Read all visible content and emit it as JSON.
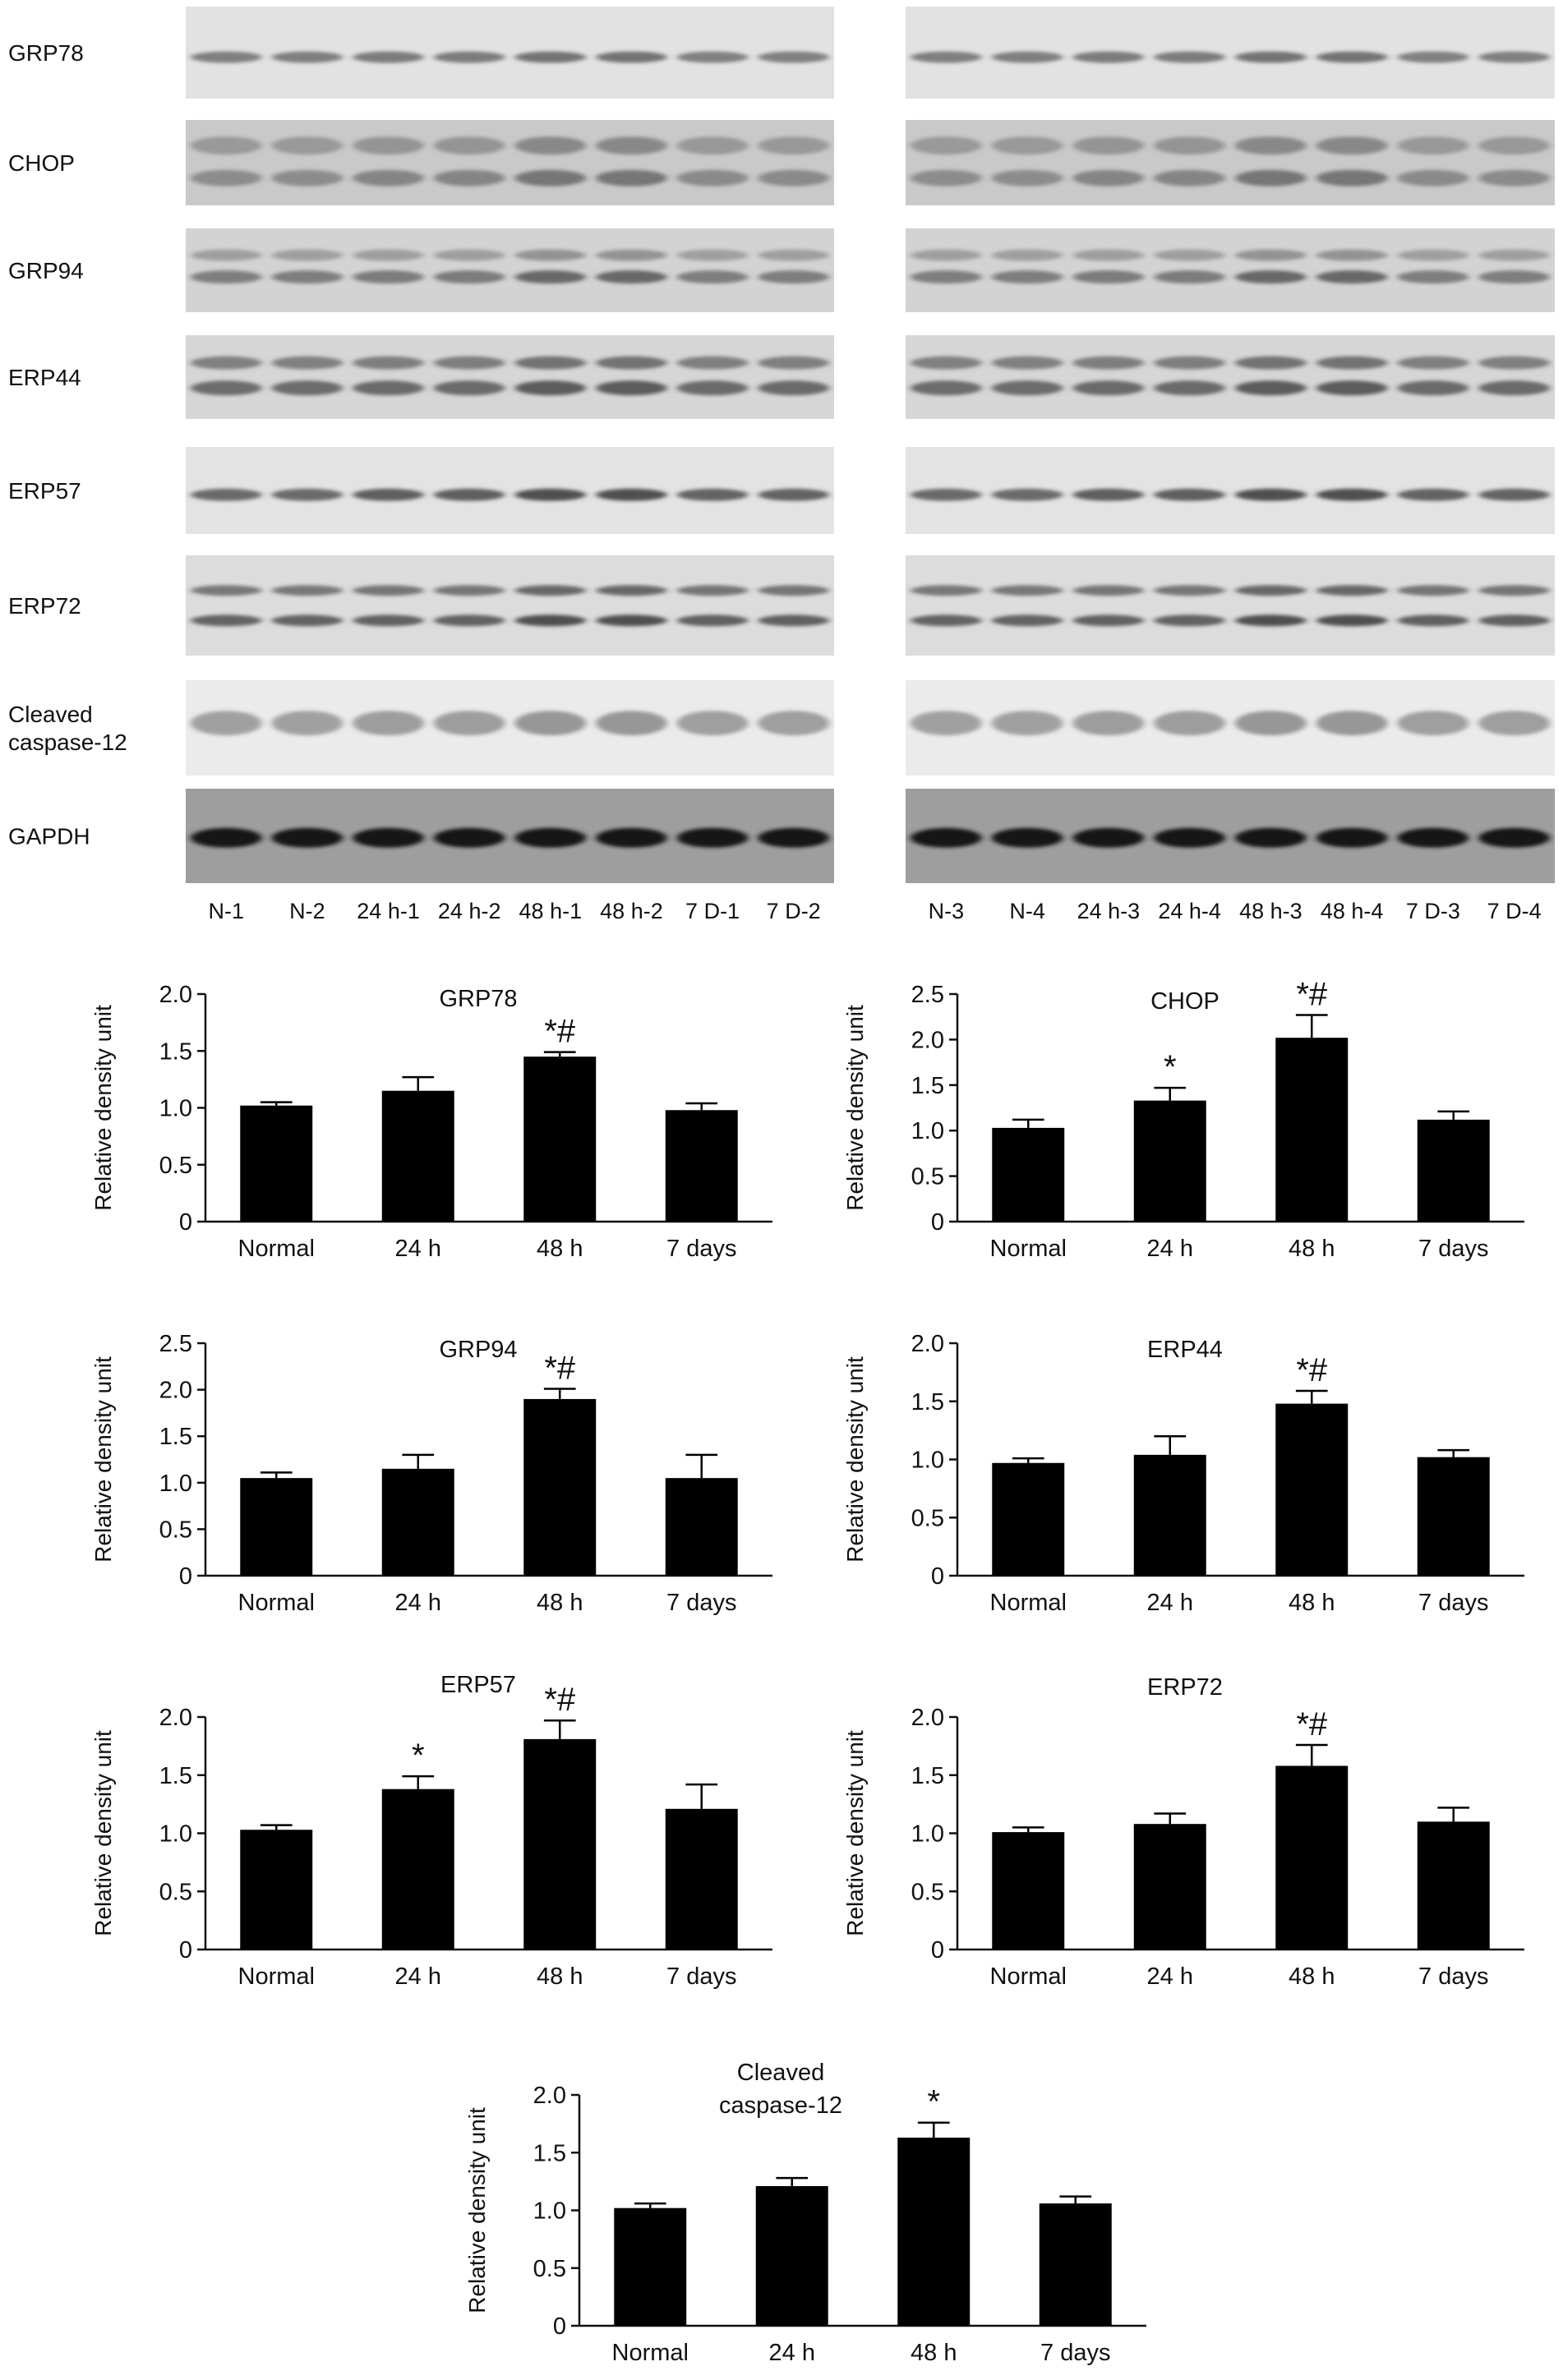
{
  "blots": {
    "rows": [
      {
        "label_lines": [
          "GRP78"
        ]
      },
      {
        "label_lines": [
          "CHOP"
        ]
      },
      {
        "label_lines": [
          "GRP94"
        ]
      },
      {
        "label_lines": [
          "ERP44"
        ]
      },
      {
        "label_lines": [
          "ERP57"
        ]
      },
      {
        "label_lines": [
          "ERP72"
        ]
      },
      {
        "label_lines": [
          "Cleaved",
          "caspase-12"
        ]
      },
      {
        "label_lines": [
          "GAPDH"
        ]
      }
    ],
    "panels": [
      {
        "lane_labels": [
          "N-1",
          "N-2",
          "24 h-1",
          "24 h-2",
          "48 h-1",
          "48 h-2",
          "7 D-1",
          "7 D-2"
        ]
      },
      {
        "lane_labels": [
          "N-3",
          "N-4",
          "24 h-3",
          "24 h-4",
          "48 h-3",
          "48 h-4",
          "7 D-3",
          "7 D-4"
        ]
      }
    ]
  },
  "chart_data": [
    {
      "type": "bar",
      "title": "GRP78",
      "ylabel": "Relative density unit",
      "categories": [
        "Normal",
        "24 h",
        "48 h",
        "7 days"
      ],
      "values": [
        1.02,
        1.15,
        1.45,
        0.98
      ],
      "errors": [
        0.03,
        0.12,
        0.04,
        0.06
      ],
      "annotations": [
        "",
        "",
        "*#",
        ""
      ],
      "ylim": [
        0,
        2.0
      ],
      "yticks": [
        "0",
        "0.5",
        "1.0",
        "1.5",
        "2.0"
      ]
    },
    {
      "type": "bar",
      "title": "CHOP",
      "ylabel": "Relative density unit",
      "categories": [
        "Normal",
        "24 h",
        "48 h",
        "7 days"
      ],
      "values": [
        1.03,
        1.33,
        2.02,
        1.12
      ],
      "errors": [
        0.09,
        0.14,
        0.25,
        0.09
      ],
      "annotations": [
        "",
        "*",
        "*#",
        ""
      ],
      "ylim": [
        0,
        2.5
      ],
      "yticks": [
        "0",
        "0.5",
        "1.0",
        "1.5",
        "2.0",
        "2.5"
      ]
    },
    {
      "type": "bar",
      "title": "GRP94",
      "ylabel": "Relative density unit",
      "categories": [
        "Normal",
        "24 h",
        "48 h",
        "7 days"
      ],
      "values": [
        1.05,
        1.15,
        1.9,
        1.05
      ],
      "errors": [
        0.06,
        0.15,
        0.11,
        0.25
      ],
      "annotations": [
        "",
        "",
        "*#",
        ""
      ],
      "ylim": [
        0,
        2.5
      ],
      "yticks": [
        "0",
        "0.5",
        "1.0",
        "1.5",
        "2.0",
        "2.5"
      ]
    },
    {
      "type": "bar",
      "title": "ERP44",
      "ylabel": "Relative density unit",
      "categories": [
        "Normal",
        "24 h",
        "48 h",
        "7 days"
      ],
      "values": [
        0.97,
        1.04,
        1.48,
        1.02
      ],
      "errors": [
        0.04,
        0.16,
        0.11,
        0.06
      ],
      "annotations": [
        "",
        "",
        "*#",
        ""
      ],
      "ylim": [
        0,
        2.0
      ],
      "yticks": [
        "0",
        "0.5",
        "1.0",
        "1.5",
        "2.0"
      ]
    },
    {
      "type": "bar",
      "title": "ERP57",
      "ylabel": "Relative density unit",
      "categories": [
        "Normal",
        "24 h",
        "48 h",
        "7 days"
      ],
      "values": [
        1.03,
        1.38,
        1.81,
        1.21
      ],
      "errors": [
        0.04,
        0.11,
        0.16,
        0.21
      ],
      "annotations": [
        "",
        "*",
        "*#",
        ""
      ],
      "ylim": [
        0,
        2.0
      ],
      "yticks": [
        "0",
        "0.5",
        "1.0",
        "1.5",
        "2.0"
      ]
    },
    {
      "type": "bar",
      "title": "ERP72",
      "ylabel": "Relative density unit",
      "categories": [
        "Normal",
        "24 h",
        "48 h",
        "7 days"
      ],
      "values": [
        1.01,
        1.08,
        1.58,
        1.1
      ],
      "errors": [
        0.04,
        0.09,
        0.18,
        0.12
      ],
      "annotations": [
        "",
        "",
        "*#",
        ""
      ],
      "ylim": [
        0,
        2.0
      ],
      "yticks": [
        "0",
        "0.5",
        "1.0",
        "1.5",
        "2.0"
      ]
    },
    {
      "type": "bar",
      "title": "Cleaved caspase-12",
      "ylabel": "Relative density unit",
      "categories": [
        "Normal",
        "24 h",
        "48 h",
        "7 days"
      ],
      "values": [
        1.02,
        1.21,
        1.63,
        1.06
      ],
      "errors": [
        0.04,
        0.07,
        0.13,
        0.06
      ],
      "annotations": [
        "",
        "",
        "*",
        ""
      ],
      "ylim": [
        0,
        2.0
      ],
      "yticks": [
        "0",
        "0.5",
        "1.0",
        "1.5",
        "2.0"
      ]
    }
  ]
}
